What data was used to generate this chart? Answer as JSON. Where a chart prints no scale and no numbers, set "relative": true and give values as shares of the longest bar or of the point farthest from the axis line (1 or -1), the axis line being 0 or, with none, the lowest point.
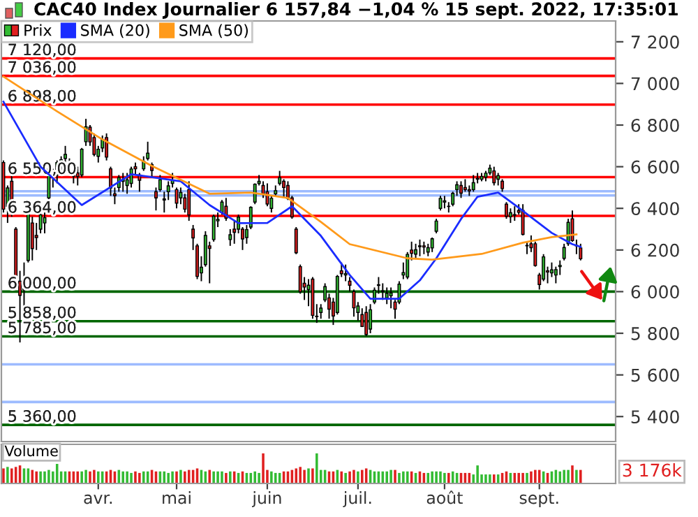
{
  "chart_data": [
    {
      "type": "candlestick",
      "title": "CAC40 Index Journalier 6 157,84 −1,04 % 15 sept. 2022, 17:35:01",
      "categories": [
        null,
        null,
        null,
        null,
        null,
        null,
        null,
        null,
        null,
        null,
        null,
        null,
        null,
        null,
        null,
        null,
        null,
        null,
        null,
        null,
        null,
        null,
        null,
        null,
        null,
        null,
        null,
        null,
        null,
        null,
        null,
        null,
        null,
        null,
        null,
        null,
        null,
        null,
        null,
        null,
        null,
        null,
        null,
        null,
        null,
        null,
        null,
        null,
        null,
        null,
        null,
        null,
        null,
        null,
        null,
        null,
        null,
        null,
        null,
        null,
        null,
        null,
        null,
        null,
        null,
        null,
        null,
        null,
        null,
        null,
        null,
        null,
        null,
        null,
        null,
        null,
        null,
        null,
        null,
        null,
        null,
        null,
        null,
        null,
        null,
        null,
        null,
        null,
        null,
        null,
        null,
        null,
        null,
        null,
        null,
        null,
        null,
        null,
        null,
        null,
        null,
        null,
        null,
        null,
        null,
        null,
        null,
        null,
        null,
        null,
        null,
        null,
        null,
        null,
        null,
        null,
        null,
        null,
        null,
        null,
        null,
        null,
        null,
        null,
        null,
        null,
        null,
        null,
        null,
        null,
        null,
        null,
        null,
        null,
        null,
        null,
        null,
        null,
        null,
        null,
        null,
        null,
        null,
        null,
        null,
        null,
        null,
        null,
        null
      ],
      "series": [
        {
          "name": "Prix",
          "type": "candlestick",
          "ohlc": [
            [
              6620,
              6630,
              6380,
              6396
            ],
            [
              6410,
              6510,
              6330,
              6498
            ],
            [
              6530,
              6560,
              6360,
              6378
            ],
            [
              6300,
              6310,
              6040,
              6061
            ],
            [
              6050,
              6100,
              5756,
              5982
            ],
            [
              6010,
              6140,
              5880,
              6062
            ],
            [
              6150,
              6400,
              6140,
              6387
            ],
            [
              6330,
              6360,
              6150,
              6207
            ],
            [
              6270,
              6330,
              6200,
              6260
            ],
            [
              6300,
              6400,
              6280,
              6369
            ],
            [
              6330,
              6380,
              6280,
              6355
            ],
            [
              6450,
              6600,
              6440,
              6590
            ],
            [
              6560,
              6590,
              6500,
              6568
            ],
            [
              6560,
              6630,
              6520,
              6620
            ],
            [
              6600,
              6650,
              6560,
              6633
            ],
            [
              6640,
              6700,
              6600,
              6659
            ],
            [
              6620,
              6640,
              6560,
              6581
            ],
            [
              6560,
              6590,
              6520,
              6555
            ],
            [
              6570,
              6600,
              6510,
              6553
            ],
            [
              6560,
              6690,
              6550,
              6684
            ],
            [
              6720,
              6830,
              6700,
              6792
            ],
            [
              6790,
              6800,
              6700,
              6719
            ],
            [
              6740,
              6760,
              6650,
              6659
            ],
            [
              6650,
              6700,
              6620,
              6684
            ],
            [
              6690,
              6750,
              6670,
              6731
            ],
            [
              6740,
              6760,
              6630,
              6646
            ],
            [
              6590,
              6600,
              6460,
              6498
            ],
            [
              6470,
              6500,
              6420,
              6461
            ],
            [
              6500,
              6560,
              6480,
              6548
            ],
            [
              6530,
              6570,
              6480,
              6538
            ],
            [
              6510,
              6570,
              6470,
              6537
            ],
            [
              6520,
              6600,
              6500,
              6589
            ],
            [
              6600,
              6620,
              6560,
              6590
            ],
            [
              6560,
              6570,
              6480,
              6535
            ],
            [
              6590,
              6650,
              6580,
              6626
            ],
            [
              6640,
              6720,
              6630,
              6665
            ],
            [
              6610,
              6620,
              6550,
              6582
            ],
            [
              6480,
              6500,
              6390,
              6450
            ],
            [
              6490,
              6560,
              6480,
              6537
            ],
            [
              6440,
              6480,
              6380,
              6445
            ],
            [
              6480,
              6530,
              6440,
              6508
            ],
            [
              6520,
              6570,
              6500,
              6534
            ],
            [
              6490,
              6500,
              6400,
              6425
            ],
            [
              6450,
              6500,
              6420,
              6476
            ],
            [
              6450,
              6470,
              6380,
              6396
            ],
            [
              6490,
              6530,
              6340,
              6368
            ],
            [
              6300,
              6320,
              6200,
              6258
            ],
            [
              6220,
              6230,
              6060,
              6073
            ],
            [
              6090,
              6170,
              6050,
              6117
            ],
            [
              6130,
              6290,
              6120,
              6270
            ],
            [
              6220,
              6240,
              6040,
              6208
            ],
            [
              6250,
              6370,
              6240,
              6362
            ],
            [
              6340,
              6380,
              6310,
              6347
            ],
            [
              6380,
              6440,
              6370,
              6430
            ],
            [
              6410,
              6450,
              6340,
              6353
            ],
            [
              6250,
              6300,
              6220,
              6273
            ],
            [
              6300,
              6340,
              6230,
              6285
            ],
            [
              6300,
              6370,
              6280,
              6358
            ],
            [
              6300,
              6310,
              6200,
              6253
            ],
            [
              6260,
              6320,
              6230,
              6298
            ],
            [
              6310,
              6410,
              6300,
              6405
            ],
            [
              6430,
              6520,
              6420,
              6516
            ],
            [
              6520,
              6560,
              6510,
              6530
            ],
            [
              6510,
              6530,
              6450,
              6468
            ],
            [
              6480,
              6520,
              6410,
              6421
            ],
            [
              6400,
              6460,
              6380,
              6448
            ],
            [
              6470,
              6510,
              6460,
              6485
            ],
            [
              6520,
              6580,
              6510,
              6548
            ],
            [
              6530,
              6540,
              6450,
              6500
            ],
            [
              6510,
              6530,
              6440,
              6448
            ],
            [
              6450,
              6460,
              6350,
              6359
            ],
            [
              6300,
              6310,
              6180,
              6187
            ],
            [
              6120,
              6130,
              5990,
              5999
            ],
            [
              6040,
              6070,
              5960,
              6022
            ],
            [
              6010,
              6060,
              5930,
              6031
            ],
            [
              6060,
              6070,
              5870,
              5886
            ],
            [
              5880,
              5940,
              5850,
              5882
            ],
            [
              5900,
              5940,
              5870,
              5921
            ],
            [
              5960,
              6040,
              5950,
              6024
            ],
            [
              5970,
              5990,
              5870,
              5916
            ],
            [
              5950,
              5970,
              5840,
              5883
            ],
            [
              5900,
              6080,
              5890,
              6073
            ],
            [
              6100,
              6140,
              6070,
              6086
            ],
            [
              6080,
              6130,
              6050,
              6086
            ],
            [
              6050,
              6070,
              6000,
              6031
            ],
            [
              6000,
              6010,
              5880,
              5922
            ],
            [
              5900,
              5950,
              5860,
              5931
            ],
            [
              5890,
              5920,
              5830,
              5833
            ],
            [
              5900,
              5930,
              5786,
              5794
            ],
            [
              5820,
              5940,
              5800,
              5913
            ],
            [
              5950,
              6020,
              5940,
              6007
            ],
            [
              6030,
              6070,
              5990,
              6033
            ],
            [
              6000,
              6040,
              5960,
              6004
            ],
            [
              5970,
              6020,
              5940,
              5992
            ],
            [
              5980,
              6020,
              5920,
              5994
            ],
            [
              5950,
              5960,
              5870,
              5916
            ],
            [
              5950,
              6050,
              5940,
              6036
            ],
            [
              6080,
              6140,
              6060,
              6091
            ],
            [
              6070,
              6190,
              6060,
              6179
            ],
            [
              6200,
              6240,
              6150,
              6184
            ],
            [
              6180,
              6230,
              6160,
              6201
            ],
            [
              6220,
              6250,
              6170,
              6216
            ],
            [
              6220,
              6240,
              6180,
              6214
            ],
            [
              6190,
              6230,
              6170,
              6211
            ],
            [
              6210,
              6260,
              6190,
              6254
            ],
            [
              6290,
              6350,
              6280,
              6339
            ],
            [
              6400,
              6460,
              6390,
              6448
            ],
            [
              6430,
              6460,
              6400,
              6436
            ],
            [
              6410,
              6430,
              6380,
              6409
            ],
            [
              6420,
              6480,
              6410,
              6472
            ],
            [
              6490,
              6530,
              6460,
              6513
            ],
            [
              6510,
              6530,
              6450,
              6473
            ],
            [
              6500,
              6540,
              6480,
              6490
            ],
            [
              6490,
              6510,
              6460,
              6484
            ],
            [
              6490,
              6560,
              6480,
              6523
            ],
            [
              6540,
              6570,
              6520,
              6544
            ],
            [
              6540,
              6570,
              6530,
              6553
            ],
            [
              6550,
              6580,
              6530,
              6569
            ],
            [
              6570,
              6610,
              6560,
              6593
            ],
            [
              6580,
              6600,
              6510,
              6523
            ],
            [
              6540,
              6570,
              6510,
              6557
            ],
            [
              6530,
              6540,
              6480,
              6495
            ],
            [
              6420,
              6430,
              6350,
              6362
            ],
            [
              6360,
              6400,
              6330,
              6379
            ],
            [
              6370,
              6410,
              6340,
              6367
            ],
            [
              6390,
              6420,
              6370,
              6381
            ],
            [
              6390,
              6420,
              6270,
              6275
            ],
            [
              6220,
              6240,
              6180,
              6222
            ],
            [
              6230,
              6270,
              6190,
              6211
            ],
            [
              6230,
              6240,
              6120,
              6125
            ],
            [
              6080,
              6090,
              6010,
              6034
            ],
            [
              6060,
              6180,
              6050,
              6167
            ],
            [
              6100,
              6120,
              6040,
              6094
            ],
            [
              6090,
              6140,
              6070,
              6105
            ],
            [
              6080,
              6120,
              6040,
              6106
            ],
            [
              6120,
              6150,
              6080,
              6126
            ],
            [
              6160,
              6230,
              6150,
              6212
            ],
            [
              6230,
              6350,
              6220,
              6333
            ],
            [
              6350,
              6390,
              6240,
              6245
            ],
            [
              6220,
              6250,
              6180,
              6222
            ],
            [
              6210,
              6230,
              6150,
              6158
            ],
            null,
            null,
            null,
            null,
            null,
            null,
            null,
            null
          ],
          "colors": [
            "#e02020",
            "#33bb33",
            "#e02020",
            "#e02020",
            "#e02020",
            "#33bb33",
            "#33bb33",
            "#e02020",
            "#e02020",
            "#33bb33",
            "#33bb33",
            "#33bb33",
            "#33bb33",
            "#33bb33",
            "#33bb33",
            "#33bb33",
            "#e02020",
            "#e02020",
            "#e02020",
            "#33bb33",
            "#33bb33",
            "#e02020",
            "#e02020",
            "#33bb33",
            "#33bb33",
            "#e02020",
            "#e02020",
            "#e02020",
            "#33bb33",
            "#33bb33",
            "#33bb33",
            "#33bb33",
            "#e02020",
            "#e02020",
            "#33bb33",
            "#33bb33",
            "#e02020",
            "#e02020",
            "#33bb33",
            "#33bb33",
            "#33bb33",
            "#33bb33",
            "#e02020",
            "#33bb33",
            "#e02020",
            "#e02020",
            "#e02020",
            "#e02020",
            "#33bb33",
            "#33bb33",
            "#e02020",
            "#33bb33",
            "#33bb33",
            "#33bb33",
            "#e02020",
            "#33bb33",
            "#e02020",
            "#33bb33",
            "#e02020",
            "#33bb33",
            "#33bb33",
            "#33bb33",
            "#33bb33",
            "#e02020",
            "#e02020",
            "#33bb33",
            "#33bb33",
            "#33bb33",
            "#e02020",
            "#e02020",
            "#e02020",
            "#e02020",
            "#e02020",
            "#e02020",
            "#33bb33",
            "#e02020",
            "#33bb33",
            "#33bb33",
            "#33bb33",
            "#e02020",
            "#e02020",
            "#33bb33",
            "#e02020",
            "#33bb33",
            "#e02020",
            "#e02020",
            "#33bb33",
            "#e02020",
            "#e02020",
            "#33bb33",
            "#33bb33",
            "#33bb33",
            "#33bb33",
            "#33bb33",
            "#33bb33",
            "#e02020",
            "#33bb33",
            "#33bb33",
            "#33bb33",
            "#e02020",
            "#33bb33",
            "#e02020",
            "#e02020",
            "#33bb33",
            "#33bb33",
            "#33bb33",
            "#33bb33",
            "#33bb33",
            "#e02020",
            "#33bb33",
            "#33bb33",
            "#e02020",
            "#e02020",
            "#e02020",
            "#33bb33",
            "#33bb33",
            "#33bb33",
            "#33bb33",
            "#33bb33",
            "#e02020",
            "#33bb33",
            "#e02020",
            "#e02020",
            "#33bb33",
            "#e02020",
            "#e02020",
            "#e02020",
            "#33bb33",
            "#e02020",
            "#e02020",
            "#e02020",
            "#33bb33",
            "#e02020",
            "#33bb33",
            "#33bb33",
            "#33bb33",
            "#33bb33",
            "#33bb33",
            "#e02020",
            "#33bb33",
            "#e02020",
            null,
            null,
            null,
            null,
            null,
            null,
            null,
            null
          ]
        },
        {
          "name": "SMA (20)",
          "type": "line",
          "color": "#1a2cff",
          "values": [
            6912,
            null,
            null,
            null,
            null,
            null,
            null,
            null,
            null,
            6600,
            null,
            null,
            null,
            null,
            null,
            null,
            null,
            null,
            null,
            6416,
            null,
            null,
            null,
            null,
            null,
            null,
            null,
            null,
            null,
            null,
            null,
            6564,
            null,
            null,
            null,
            null,
            null,
            null,
            null,
            null,
            null,
            null,
            null,
            6530,
            null,
            null,
            null,
            null,
            null,
            null,
            6416,
            null,
            null,
            null,
            null,
            null,
            null,
            6329,
            null,
            null,
            null,
            null,
            null,
            null,
            6330,
            null,
            null,
            null,
            null,
            null,
            6410,
            null,
            null,
            null,
            null,
            null,
            null,
            6268,
            null,
            null,
            null,
            null,
            null,
            null,
            6080,
            null,
            null,
            null,
            null,
            5966,
            null,
            null,
            null,
            null,
            null,
            null,
            5966,
            null,
            null,
            null,
            null,
            6054,
            null,
            null,
            null,
            6160,
            null,
            null,
            null,
            null,
            null,
            6349,
            null,
            null,
            null,
            6456,
            null,
            null,
            null,
            null,
            6476,
            null,
            null,
            null,
            null,
            6403,
            null,
            null,
            null,
            null,
            null,
            null,
            null,
            6282,
            null,
            null,
            null,
            null,
            6228,
            null,
            6215,
            null,
            null,
            null,
            null,
            null,
            null,
            null,
            null
          ]
        },
        {
          "name": "SMA (50)",
          "type": "line",
          "color": "#ff9a1a",
          "values": [
            7033,
            null,
            null,
            null,
            null,
            null,
            null,
            null,
            null,
            null,
            null,
            null,
            null,
            6866,
            null,
            null,
            null,
            null,
            null,
            null,
            null,
            null,
            null,
            null,
            6731,
            null,
            null,
            null,
            null,
            null,
            null,
            null,
            null,
            null,
            null,
            null,
            6604,
            null,
            null,
            null,
            null,
            null,
            null,
            null,
            null,
            null,
            null,
            null,
            null,
            null,
            6470,
            null,
            null,
            null,
            null,
            null,
            null,
            null,
            null,
            null,
            6476,
            null,
            null,
            null,
            null,
            null,
            null,
            null,
            null,
            6450,
            null,
            null,
            null,
            null,
            null,
            null,
            null,
            6335,
            null,
            null,
            null,
            null,
            null,
            null,
            6228,
            null,
            null,
            null,
            null,
            null,
            null,
            null,
            null,
            null,
            null,
            null,
            null,
            null,
            6160,
            null,
            null,
            null,
            null,
            null,
            6154,
            null,
            null,
            null,
            null,
            null,
            null,
            null,
            null,
            null,
            null,
            null,
            6181,
            null,
            null,
            null,
            null,
            null,
            null,
            null,
            null,
            null,
            6235,
            null,
            null,
            null,
            null,
            null,
            null,
            6262,
            null,
            null,
            null,
            null,
            null,
            6275,
            null,
            null,
            null,
            null,
            null,
            null,
            null,
            null,
            null
          ]
        }
      ],
      "ylim": [
        5280,
        7300
      ],
      "yticks": [
        {
          "value": 5400,
          "label": "5 400"
        },
        {
          "value": 5600,
          "label": "5 600"
        },
        {
          "value": 5800,
          "label": "5 800"
        },
        {
          "value": 6000,
          "label": "6 000"
        },
        {
          "value": 6200,
          "label": "6 200"
        },
        {
          "value": 6400,
          "label": "6 400"
        },
        {
          "value": 6600,
          "label": "6 600"
        },
        {
          "value": 6800,
          "label": "6 800"
        },
        {
          "value": 7000,
          "label": "7 000"
        },
        {
          "value": 7200,
          "label": "7 200"
        }
      ],
      "ref_lines": [
        {
          "axis": "y",
          "value": 7120,
          "label": "7 120,00",
          "color": "#ff0000"
        },
        {
          "axis": "y",
          "value": 7036,
          "label": "7 036,00",
          "color": "#ff0000"
        },
        {
          "axis": "y",
          "value": 6898,
          "label": "6 898,00",
          "color": "#ff0000"
        },
        {
          "axis": "y",
          "value": 6550,
          "label": "6 550,00",
          "color": "#ff0000"
        },
        {
          "axis": "y",
          "value": 6364,
          "label": "6 364,00",
          "color": "#ff0000"
        },
        {
          "axis": "y",
          "value": 6000,
          "label": "6 000,00",
          "color": "#006600"
        },
        {
          "axis": "y",
          "value": 5858,
          "label": "5 858,00",
          "color": "#006600"
        },
        {
          "axis": "y",
          "value": 5785,
          "label": "5 785,00",
          "color": "#006600"
        },
        {
          "axis": "y",
          "value": 5360,
          "label": "5 360,00",
          "color": "#006600"
        },
        {
          "axis": "y",
          "value": 6482,
          "label": null,
          "color": "#9dbbff"
        },
        {
          "axis": "y",
          "value": 6462,
          "label": null,
          "color": "#9dbbff"
        },
        {
          "axis": "y",
          "value": 5651,
          "label": null,
          "color": "#9dbbff"
        },
        {
          "axis": "y",
          "value": 5470,
          "label": null,
          "color": "#9dbbff"
        }
      ],
      "legend": "top left",
      "grid": false,
      "tick_labels": "y"
    },
    {
      "type": "bar",
      "legend_title": "Volume",
      "relative": true,
      "tick_labels": "x",
      "categories": [
        null,
        null,
        null,
        null,
        null,
        null,
        null,
        null,
        null,
        null,
        null,
        null,
        null,
        null,
        null,
        null,
        null,
        null,
        null,
        null,
        null,
        null,
        null,
        "avr.",
        null,
        null,
        null,
        null,
        null,
        null,
        null,
        null,
        null,
        null,
        null,
        null,
        null,
        null,
        null,
        null,
        null,
        null,
        "mai",
        null,
        null,
        null,
        null,
        null,
        null,
        null,
        null,
        null,
        null,
        null,
        null,
        null,
        null,
        null,
        null,
        null,
        null,
        null,
        null,
        null,
        "juin",
        null,
        null,
        null,
        null,
        null,
        null,
        null,
        null,
        null,
        null,
        null,
        null,
        null,
        null,
        null,
        null,
        null,
        null,
        null,
        null,
        null,
        "juil.",
        null,
        null,
        null,
        null,
        null,
        null,
        null,
        null,
        null,
        null,
        null,
        null,
        null,
        null,
        null,
        null,
        null,
        null,
        null,
        null,
        "août",
        null,
        null,
        null,
        null,
        null,
        null,
        null,
        null,
        null,
        null,
        null,
        null,
        null,
        null,
        null,
        null,
        null,
        null,
        null,
        null,
        null,
        null,
        "sept.",
        null,
        null,
        null,
        null,
        null,
        null,
        null,
        null,
        null,
        null,
        null,
        null,
        null,
        null,
        null,
        null,
        null,
        null
      ],
      "values": [
        0.5,
        0.55,
        0.5,
        0.55,
        0.6,
        0.5,
        0.5,
        0.45,
        0.4,
        0.4,
        0.4,
        0.45,
        0.4,
        0.65,
        0.4,
        0.4,
        0.4,
        0.4,
        0.4,
        0.4,
        0.45,
        0.4,
        0.45,
        0.4,
        0.4,
        0.4,
        0.45,
        0.4,
        0.45,
        0.4,
        0.4,
        0.35,
        0.4,
        0.35,
        0.4,
        0.4,
        0.45,
        0.4,
        0.4,
        0.4,
        0.35,
        0.4,
        0.4,
        0.45,
        0.4,
        0.45,
        0.45,
        0.5,
        0.45,
        0.4,
        0.45,
        0.4,
        0.4,
        0.4,
        0.35,
        0.4,
        0.4,
        0.35,
        0.4,
        0.35,
        0.35,
        0.4,
        0.35,
        1.0,
        0.45,
        0.4,
        0.35,
        0.35,
        0.4,
        0.4,
        0.45,
        0.5,
        0.55,
        0.45,
        0.5,
        0.5,
        1.0,
        0.45,
        0.45,
        0.4,
        0.4,
        0.45,
        0.4,
        0.35,
        0.4,
        0.45,
        0.4,
        0.45,
        0.5,
        0.45,
        0.4,
        0.4,
        0.4,
        0.4,
        0.45,
        0.45,
        0.35,
        0.4,
        0.4,
        0.4,
        0.35,
        0.4,
        0.35,
        0.35,
        0.4,
        0.4,
        0.4,
        0.35,
        0.35,
        0.4,
        0.35,
        0.35,
        0.35,
        0.35,
        0.3,
        0.6,
        0.3,
        0.3,
        0.3,
        0.3,
        0.3,
        0.35,
        0.4,
        0.35,
        0.35,
        0.35,
        0.35,
        0.35,
        0.4,
        0.45,
        0.45,
        0.4,
        0.35,
        0.4,
        0.45,
        0.4,
        0.45,
        0.45,
        0.6,
        0.45,
        0.45,
        null,
        null,
        null,
        null,
        null,
        null,
        null,
        null
      ],
      "colors": [
        "#e02020",
        "#33bb33",
        "#e02020",
        "#e02020",
        "#e02020",
        "#33bb33",
        "#33bb33",
        "#e02020",
        "#e02020",
        "#33bb33",
        "#33bb33",
        "#33bb33",
        "#33bb33",
        "#33bb33",
        "#33bb33",
        "#33bb33",
        "#e02020",
        "#e02020",
        "#e02020",
        "#33bb33",
        "#33bb33",
        "#e02020",
        "#e02020",
        "#33bb33",
        "#33bb33",
        "#e02020",
        "#e02020",
        "#e02020",
        "#33bb33",
        "#33bb33",
        "#33bb33",
        "#33bb33",
        "#e02020",
        "#e02020",
        "#33bb33",
        "#33bb33",
        "#e02020",
        "#e02020",
        "#33bb33",
        "#33bb33",
        "#33bb33",
        "#33bb33",
        "#e02020",
        "#33bb33",
        "#e02020",
        "#e02020",
        "#e02020",
        "#e02020",
        "#33bb33",
        "#33bb33",
        "#e02020",
        "#33bb33",
        "#33bb33",
        "#33bb33",
        "#e02020",
        "#33bb33",
        "#e02020",
        "#33bb33",
        "#e02020",
        "#33bb33",
        "#33bb33",
        "#33bb33",
        "#33bb33",
        "#e02020",
        "#e02020",
        "#33bb33",
        "#33bb33",
        "#33bb33",
        "#e02020",
        "#e02020",
        "#e02020",
        "#e02020",
        "#e02020",
        "#e02020",
        "#33bb33",
        "#e02020",
        "#33bb33",
        "#33bb33",
        "#33bb33",
        "#e02020",
        "#e02020",
        "#33bb33",
        "#e02020",
        "#33bb33",
        "#e02020",
        "#e02020",
        "#33bb33",
        "#e02020",
        "#e02020",
        "#33bb33",
        "#33bb33",
        "#33bb33",
        "#33bb33",
        "#33bb33",
        "#33bb33",
        "#e02020",
        "#33bb33",
        "#33bb33",
        "#33bb33",
        "#e02020",
        "#33bb33",
        "#e02020",
        "#e02020",
        "#33bb33",
        "#33bb33",
        "#33bb33",
        "#33bb33",
        "#33bb33",
        "#e02020",
        "#33bb33",
        "#33bb33",
        "#e02020",
        "#e02020",
        "#e02020",
        "#33bb33",
        "#33bb33",
        "#33bb33",
        "#33bb33",
        "#33bb33",
        "#e02020",
        "#33bb33",
        "#e02020",
        "#e02020",
        "#33bb33",
        "#e02020",
        "#e02020",
        "#e02020",
        "#33bb33",
        "#e02020",
        "#e02020",
        "#e02020",
        "#33bb33",
        "#e02020",
        "#33bb33",
        "#33bb33",
        "#33bb33",
        "#33bb33",
        "#33bb33",
        "#e02020",
        "#33bb33",
        "#e02020",
        null,
        null,
        null,
        null,
        null,
        null,
        null,
        null
      ],
      "annotations": [
        "3 176k"
      ]
    }
  ]
}
